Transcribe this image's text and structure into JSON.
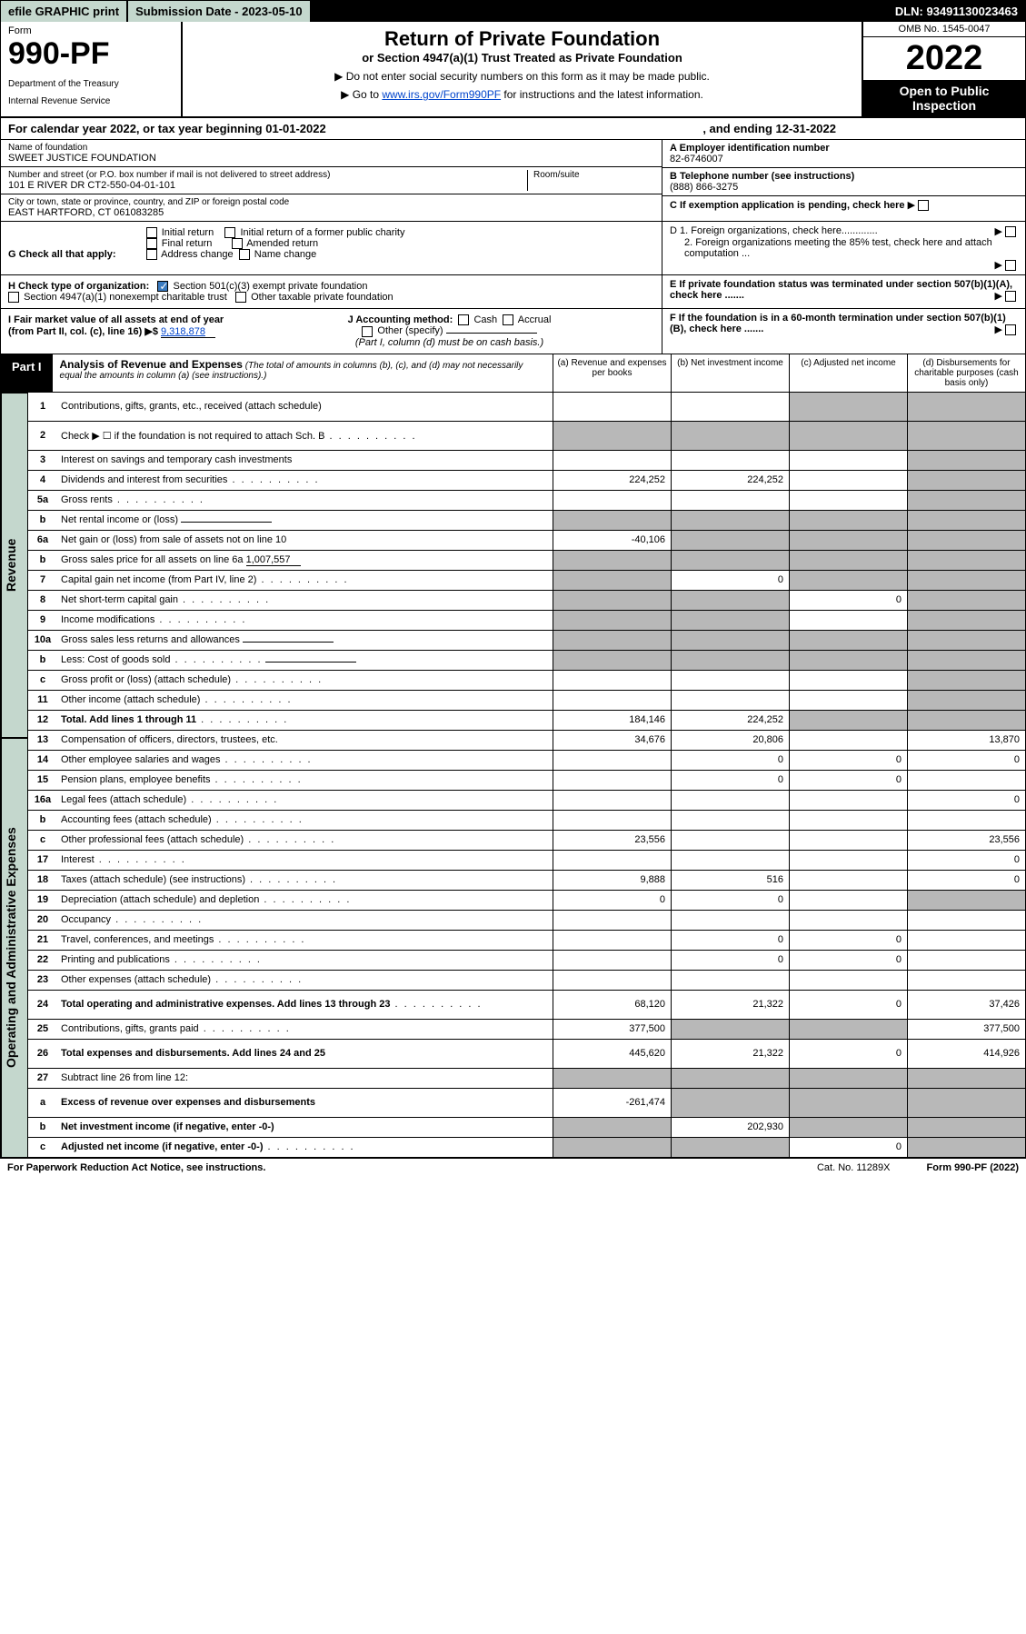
{
  "topbar": {
    "efile": "efile GRAPHIC print",
    "subdate_label": "Submission Date - 2023-05-10",
    "dln": "DLN: 93491130023463"
  },
  "header": {
    "form": "Form",
    "number": "990-PF",
    "dept": "Department of the Treasury",
    "irs": "Internal Revenue Service",
    "title": "Return of Private Foundation",
    "sub": "or Section 4947(a)(1) Trust Treated as Private Foundation",
    "note1": "▶ Do not enter social security numbers on this form as it may be made public.",
    "note2_pre": "▶ Go to ",
    "note2_link": "www.irs.gov/Form990PF",
    "note2_post": " for instructions and the latest information.",
    "omb": "OMB No. 1545-0047",
    "year": "2022",
    "open": "Open to Public Inspection"
  },
  "calyear": {
    "begin": "For calendar year 2022, or tax year beginning 01-01-2022",
    "end": ", and ending 12-31-2022"
  },
  "ident": {
    "name_lbl": "Name of foundation",
    "name": "SWEET JUSTICE FOUNDATION",
    "addr_lbl": "Number and street (or P.O. box number if mail is not delivered to street address)",
    "addr": "101 E RIVER DR CT2-550-04-01-101",
    "room_lbl": "Room/suite",
    "city_lbl": "City or town, state or province, country, and ZIP or foreign postal code",
    "city": "EAST HARTFORD, CT  061083285",
    "a_lbl": "A Employer identification number",
    "a_val": "82-6746007",
    "b_lbl": "B Telephone number (see instructions)",
    "b_val": "(888) 866-3275",
    "c_lbl": "C If exemption application is pending, check here"
  },
  "checks": {
    "g_lbl": "G Check all that apply:",
    "g_opts": [
      "Initial return",
      "Initial return of a former public charity",
      "Final return",
      "Amended return",
      "Address change",
      "Name change"
    ],
    "h_lbl": "H Check type of organization:",
    "h_opt1": "Section 501(c)(3) exempt private foundation",
    "h_opt2": "Section 4947(a)(1) nonexempt charitable trust",
    "h_opt3": "Other taxable private foundation",
    "i_lbl": "I Fair market value of all assets at end of year (from Part II, col. (c), line 16) ▶$ ",
    "i_val": "9,318,878",
    "j_lbl": "J Accounting method:",
    "j_cash": "Cash",
    "j_accrual": "Accrual",
    "j_other": "Other (specify)",
    "j_note": "(Part I, column (d) must be on cash basis.)",
    "d1": "D 1. Foreign organizations, check here.............",
    "d2": "2. Foreign organizations meeting the 85% test, check here and attach computation ...",
    "e": "E  If private foundation status was terminated under section 507(b)(1)(A), check here .......",
    "f": "F  If the foundation is in a 60-month termination under section 507(b)(1)(B), check here .......",
    "arrow": "▶"
  },
  "part1": {
    "tab": "Part I",
    "title": "Analysis of Revenue and Expenses",
    "note": " (The total of amounts in columns (b), (c), and (d) may not necessarily equal the amounts in column (a) (see instructions).)",
    "col_a": "(a)   Revenue and expenses per books",
    "col_b": "(b)   Net investment income",
    "col_c": "(c)   Adjusted net income",
    "col_d": "(d)   Disbursements for charitable purposes (cash basis only)"
  },
  "sections": {
    "revenue": "Revenue",
    "expenses": "Operating and Administrative Expenses"
  },
  "rows": {
    "r1": {
      "n": "1",
      "d": "Contributions, gifts, grants, etc., received (attach schedule)"
    },
    "r2": {
      "n": "2",
      "d": "Check ▶ ☐ if the foundation is not required to attach Sch. B"
    },
    "r3": {
      "n": "3",
      "d": "Interest on savings and temporary cash investments"
    },
    "r4": {
      "n": "4",
      "d": "Dividends and interest from securities",
      "a": "224,252",
      "b": "224,252"
    },
    "r5a": {
      "n": "5a",
      "d": "Gross rents"
    },
    "r5b": {
      "n": "b",
      "d": "Net rental income or (loss)"
    },
    "r6a": {
      "n": "6a",
      "d": "Net gain or (loss) from sale of assets not on line 10",
      "a": "-40,106"
    },
    "r6b": {
      "n": "b",
      "d": "Gross sales price for all assets on line 6a",
      "val": "1,007,557"
    },
    "r7": {
      "n": "7",
      "d": "Capital gain net income (from Part IV, line 2)",
      "b": "0"
    },
    "r8": {
      "n": "8",
      "d": "Net short-term capital gain",
      "c": "0"
    },
    "r9": {
      "n": "9",
      "d": "Income modifications"
    },
    "r10a": {
      "n": "10a",
      "d": "Gross sales less returns and allowances"
    },
    "r10b": {
      "n": "b",
      "d": "Less: Cost of goods sold"
    },
    "r10c": {
      "n": "c",
      "d": "Gross profit or (loss) (attach schedule)"
    },
    "r11": {
      "n": "11",
      "d": "Other income (attach schedule)"
    },
    "r12": {
      "n": "12",
      "d": "Total. Add lines 1 through 11",
      "a": "184,146",
      "b": "224,252"
    },
    "r13": {
      "n": "13",
      "d": "Compensation of officers, directors, trustees, etc.",
      "a": "34,676",
      "b": "20,806",
      "d4": "13,870"
    },
    "r14": {
      "n": "14",
      "d": "Other employee salaries and wages",
      "b": "0",
      "c": "0",
      "d4": "0"
    },
    "r15": {
      "n": "15",
      "d": "Pension plans, employee benefits",
      "b": "0",
      "c": "0"
    },
    "r16a": {
      "n": "16a",
      "d": "Legal fees (attach schedule)",
      "d4": "0"
    },
    "r16b": {
      "n": "b",
      "d": "Accounting fees (attach schedule)"
    },
    "r16c": {
      "n": "c",
      "d": "Other professional fees (attach schedule)",
      "a": "23,556",
      "d4": "23,556"
    },
    "r17": {
      "n": "17",
      "d": "Interest",
      "d4": "0"
    },
    "r18": {
      "n": "18",
      "d": "Taxes (attach schedule) (see instructions)",
      "a": "9,888",
      "b": "516",
      "d4": "0"
    },
    "r19": {
      "n": "19",
      "d": "Depreciation (attach schedule) and depletion",
      "a": "0",
      "b": "0"
    },
    "r20": {
      "n": "20",
      "d": "Occupancy"
    },
    "r21": {
      "n": "21",
      "d": "Travel, conferences, and meetings",
      "b": "0",
      "c": "0"
    },
    "r22": {
      "n": "22",
      "d": "Printing and publications",
      "b": "0",
      "c": "0"
    },
    "r23": {
      "n": "23",
      "d": "Other expenses (attach schedule)"
    },
    "r24": {
      "n": "24",
      "d": "Total operating and administrative expenses. Add lines 13 through 23",
      "a": "68,120",
      "b": "21,322",
      "c": "0",
      "d4": "37,426"
    },
    "r25": {
      "n": "25",
      "d": "Contributions, gifts, grants paid",
      "a": "377,500",
      "d4": "377,500"
    },
    "r26": {
      "n": "26",
      "d": "Total expenses and disbursements. Add lines 24 and 25",
      "a": "445,620",
      "b": "21,322",
      "c": "0",
      "d4": "414,926"
    },
    "r27": {
      "n": "27",
      "d": "Subtract line 26 from line 12:"
    },
    "r27a": {
      "n": "a",
      "d": "Excess of revenue over expenses and disbursements",
      "a": "-261,474"
    },
    "r27b": {
      "n": "b",
      "d": "Net investment income (if negative, enter -0-)",
      "b": "202,930"
    },
    "r27c": {
      "n": "c",
      "d": "Adjusted net income (if negative, enter -0-)",
      "c": "0"
    }
  },
  "footer": {
    "left": "For Paperwork Reduction Act Notice, see instructions.",
    "mid": "Cat. No. 11289X",
    "right": "Form 990-PF (2022)"
  }
}
